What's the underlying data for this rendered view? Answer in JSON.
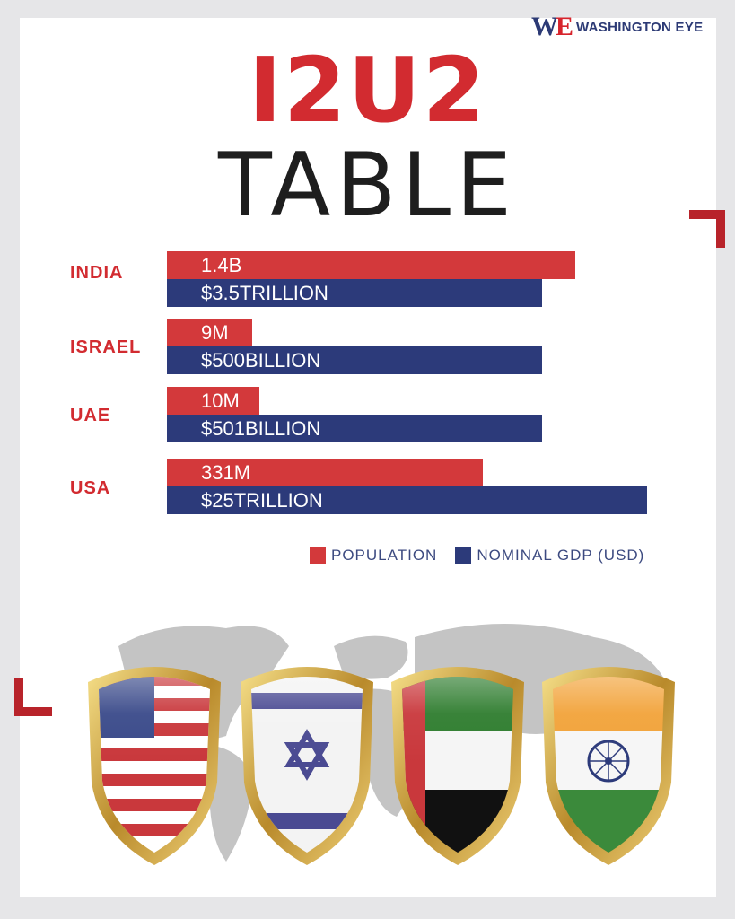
{
  "brand": {
    "logo_mark_w": "W",
    "logo_mark_e": "E",
    "logo_text": "WASHINGTON EYE"
  },
  "title": {
    "main": "I2U2",
    "sub": "TABLE"
  },
  "colors": {
    "accent_red": "#d22b30",
    "population": "#d3393b",
    "gdp": "#2c3a7a"
  },
  "chart_data": {
    "type": "bar",
    "orientation": "horizontal",
    "categories": [
      "INDIA",
      "ISRAEL",
      "UAE",
      "USA"
    ],
    "series": [
      {
        "name": "POPULATION",
        "labels": [
          "1.4B",
          "9M",
          "10M",
          "331M"
        ],
        "values": [
          1400000000,
          9000000,
          10000000,
          331000000
        ]
      },
      {
        "name": "NOMINAL GDP (USD)",
        "labels": [
          "$3.5TRILLION",
          "$500BILLION",
          "$501BILLION",
          "$25TRILLION"
        ],
        "values": [
          3500000000000,
          500000000000,
          501000000000,
          25000000000000
        ]
      }
    ],
    "legend_position": "bottom-right"
  },
  "illustration": {
    "shields": [
      "usa-flag-shield",
      "israel-flag-shield",
      "uae-flag-shield",
      "india-flag-shield"
    ]
  }
}
